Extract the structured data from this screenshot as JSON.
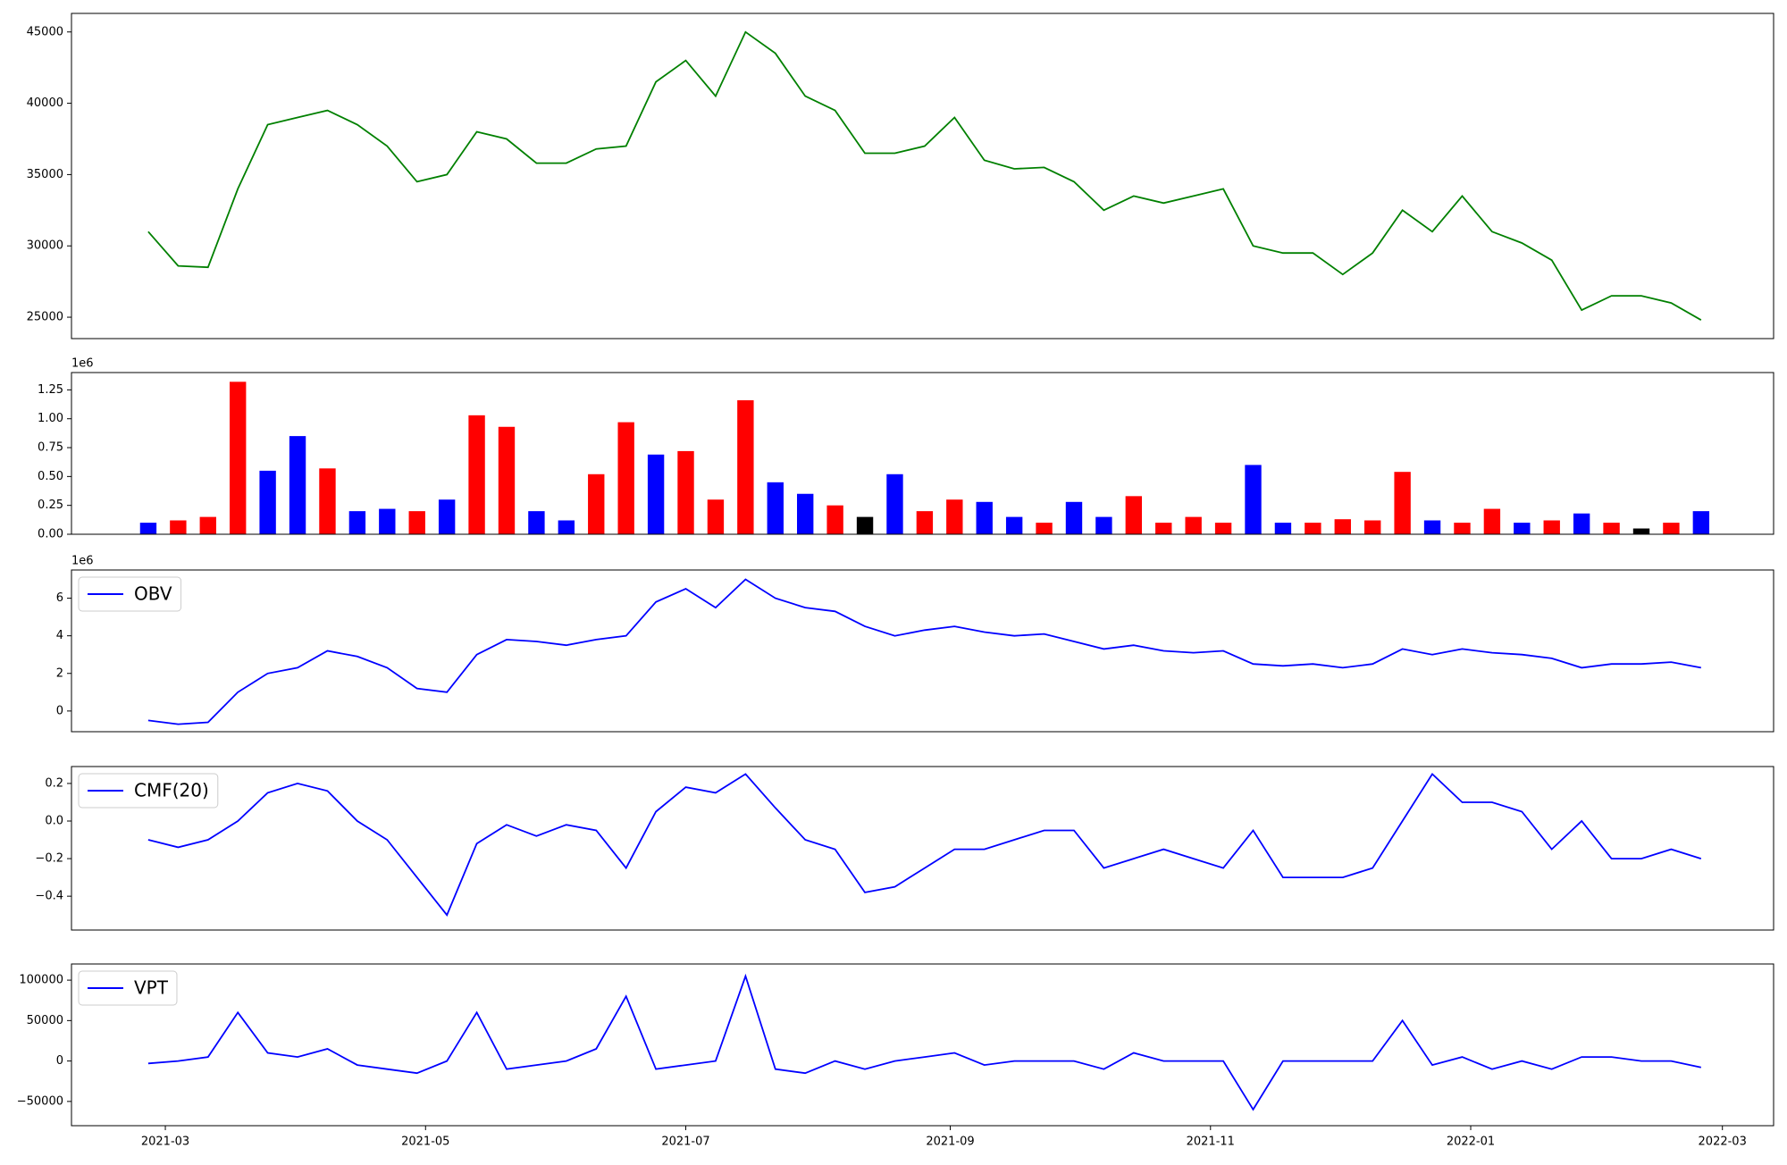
{
  "chart_data": [
    {
      "type": "line",
      "x": [
        "2021-02-25",
        "2021-03-04",
        "2021-03-11",
        "2021-03-18",
        "2021-03-25",
        "2021-04-01",
        "2021-04-08",
        "2021-04-15",
        "2021-04-22",
        "2021-04-29",
        "2021-05-06",
        "2021-05-13",
        "2021-05-20",
        "2021-05-27",
        "2021-06-03",
        "2021-06-10",
        "2021-06-17",
        "2021-06-24",
        "2021-07-01",
        "2021-07-08",
        "2021-07-15",
        "2021-07-22",
        "2021-07-29",
        "2021-08-05",
        "2021-08-12",
        "2021-08-19",
        "2021-08-26",
        "2021-09-02",
        "2021-09-09",
        "2021-09-16",
        "2021-09-23",
        "2021-09-30",
        "2021-10-07",
        "2021-10-14",
        "2021-10-21",
        "2021-10-28",
        "2021-11-04",
        "2021-11-11",
        "2021-11-18",
        "2021-11-25",
        "2021-12-02",
        "2021-12-09",
        "2021-12-16",
        "2021-12-23",
        "2021-12-30",
        "2022-01-06",
        "2022-01-13",
        "2022-01-20",
        "2022-01-27",
        "2022-02-03",
        "2022-02-10",
        "2022-02-17",
        "2022-02-24"
      ],
      "series": [
        {
          "color": "green",
          "values": [
            31000,
            28600,
            28500,
            34000,
            38500,
            39000,
            39500,
            38500,
            37000,
            34500,
            35000,
            38000,
            37500,
            35800,
            35800,
            36800,
            37000,
            41500,
            43000,
            40500,
            45000,
            43500,
            40500,
            39500,
            36500,
            36500,
            37000,
            39000,
            36000,
            35400,
            35500,
            34500,
            32500,
            33500,
            33000,
            33500,
            34000,
            30000,
            29500,
            29500,
            28000,
            29500,
            32500,
            31000,
            33500,
            31000,
            30200,
            29000,
            25500,
            26500,
            26500,
            26000,
            24800
          ]
        }
      ],
      "xlim": [
        "2021-02-07",
        "2022-03-13"
      ],
      "ylim": [
        23500,
        46300
      ],
      "yticks": [
        25000,
        30000,
        35000,
        40000,
        45000
      ]
    },
    {
      "type": "bar",
      "offset_label": "1e6",
      "x": [
        "2021-02-25",
        "2021-03-04",
        "2021-03-11",
        "2021-03-18",
        "2021-03-25",
        "2021-04-01",
        "2021-04-08",
        "2021-04-15",
        "2021-04-22",
        "2021-04-29",
        "2021-05-06",
        "2021-05-13",
        "2021-05-20",
        "2021-05-27",
        "2021-06-03",
        "2021-06-10",
        "2021-06-17",
        "2021-06-24",
        "2021-07-01",
        "2021-07-08",
        "2021-07-15",
        "2021-07-22",
        "2021-07-29",
        "2021-08-05",
        "2021-08-12",
        "2021-08-19",
        "2021-08-26",
        "2021-09-02",
        "2021-09-09",
        "2021-09-16",
        "2021-09-23",
        "2021-09-30",
        "2021-10-07",
        "2021-10-14",
        "2021-10-21",
        "2021-10-28",
        "2021-11-04",
        "2021-11-11",
        "2021-11-18",
        "2021-11-25",
        "2021-12-02",
        "2021-12-09",
        "2021-12-16",
        "2021-12-23",
        "2021-12-30",
        "2022-01-06",
        "2022-01-13",
        "2022-01-20",
        "2022-01-27",
        "2022-02-03",
        "2022-02-10",
        "2022-02-17",
        "2022-02-24"
      ],
      "series": [
        {
          "values": [
            0.1,
            0.12,
            0.15,
            1.32,
            0.55,
            0.85,
            0.57,
            0.2,
            0.22,
            0.2,
            0.3,
            1.03,
            0.93,
            0.2,
            0.12,
            0.52,
            0.97,
            0.69,
            0.72,
            0.3,
            1.16,
            0.45,
            0.35,
            0.25,
            0.15,
            0.52,
            0.2,
            0.3,
            0.28,
            0.15,
            0.1,
            0.28,
            0.15,
            0.33,
            0.1,
            0.15,
            0.1,
            0.6,
            0.1,
            0.1,
            0.13,
            0.12,
            0.54,
            0.12,
            0.1,
            0.22,
            0.1,
            0.12,
            0.18,
            0.1,
            0.05,
            0.1,
            0.2
          ],
          "colors": [
            "blue",
            "red",
            "red",
            "red",
            "blue",
            "blue",
            "red",
            "blue",
            "blue",
            "red",
            "blue",
            "red",
            "red",
            "blue",
            "blue",
            "red",
            "red",
            "blue",
            "red",
            "red",
            "red",
            "blue",
            "blue",
            "red",
            "black",
            "blue",
            "red",
            "red",
            "blue",
            "blue",
            "red",
            "blue",
            "blue",
            "red",
            "red",
            "red",
            "red",
            "blue",
            "blue",
            "red",
            "red",
            "red",
            "red",
            "blue",
            "red",
            "red",
            "blue",
            "red",
            "blue",
            "red",
            "black",
            "red",
            "blue"
          ]
        }
      ],
      "xlim": [
        "2021-02-07",
        "2022-03-13"
      ],
      "ylim": [
        0,
        1.4
      ],
      "yticks": [
        {
          "value": 0,
          "label": "0.00"
        },
        {
          "value": 0.25,
          "label": "0.25"
        },
        {
          "value": 0.5,
          "label": "0.50"
        },
        {
          "value": 0.75,
          "label": "0.75"
        },
        {
          "value": 1,
          "label": "1.00"
        },
        {
          "value": 1.25,
          "label": "1.25"
        }
      ]
    },
    {
      "type": "line",
      "offset_label": "1e6",
      "legend": "upper left",
      "x": [
        "2021-02-25",
        "2021-03-04",
        "2021-03-11",
        "2021-03-18",
        "2021-03-25",
        "2021-04-01",
        "2021-04-08",
        "2021-04-15",
        "2021-04-22",
        "2021-04-29",
        "2021-05-06",
        "2021-05-13",
        "2021-05-20",
        "2021-05-27",
        "2021-06-03",
        "2021-06-10",
        "2021-06-17",
        "2021-06-24",
        "2021-07-01",
        "2021-07-08",
        "2021-07-15",
        "2021-07-22",
        "2021-07-29",
        "2021-08-05",
        "2021-08-12",
        "2021-08-19",
        "2021-08-26",
        "2021-09-02",
        "2021-09-09",
        "2021-09-16",
        "2021-09-23",
        "2021-09-30",
        "2021-10-07",
        "2021-10-14",
        "2021-10-21",
        "2021-10-28",
        "2021-11-04",
        "2021-11-11",
        "2021-11-18",
        "2021-11-25",
        "2021-12-02",
        "2021-12-09",
        "2021-12-16",
        "2021-12-23",
        "2021-12-30",
        "2022-01-06",
        "2022-01-13",
        "2022-01-20",
        "2022-01-27",
        "2022-02-03",
        "2022-02-10",
        "2022-02-17",
        "2022-02-24"
      ],
      "series": [
        {
          "name": "OBV",
          "color": "blue",
          "values": [
            -0.5,
            -0.7,
            -0.6,
            1.0,
            2.0,
            2.3,
            3.2,
            2.9,
            2.3,
            1.2,
            1.0,
            3.0,
            3.8,
            3.7,
            3.5,
            3.8,
            4.0,
            5.8,
            6.5,
            5.5,
            7.0,
            6.0,
            5.5,
            5.3,
            4.5,
            4.0,
            4.3,
            4.5,
            4.2,
            4.0,
            4.1,
            3.7,
            3.3,
            3.5,
            3.2,
            3.1,
            3.2,
            2.5,
            2.4,
            2.5,
            2.3,
            2.5,
            3.3,
            3.0,
            3.3,
            3.1,
            3.0,
            2.8,
            2.3,
            2.5,
            2.5,
            2.6,
            2.3
          ]
        }
      ],
      "xlim": [
        "2021-02-07",
        "2022-03-13"
      ],
      "ylim": [
        -1.1,
        7.5
      ],
      "yticks": [
        0,
        2,
        4,
        6
      ]
    },
    {
      "type": "line",
      "legend": "upper left",
      "x": [
        "2021-02-25",
        "2021-03-04",
        "2021-03-11",
        "2021-03-18",
        "2021-03-25",
        "2021-04-01",
        "2021-04-08",
        "2021-04-15",
        "2021-04-22",
        "2021-04-29",
        "2021-05-06",
        "2021-05-13",
        "2021-05-20",
        "2021-05-27",
        "2021-06-03",
        "2021-06-10",
        "2021-06-17",
        "2021-06-24",
        "2021-07-01",
        "2021-07-08",
        "2021-07-15",
        "2021-07-22",
        "2021-07-29",
        "2021-08-05",
        "2021-08-12",
        "2021-08-19",
        "2021-08-26",
        "2021-09-02",
        "2021-09-09",
        "2021-09-16",
        "2021-09-23",
        "2021-09-30",
        "2021-10-07",
        "2021-10-14",
        "2021-10-21",
        "2021-10-28",
        "2021-11-04",
        "2021-11-11",
        "2021-11-18",
        "2021-11-25",
        "2021-12-02",
        "2021-12-09",
        "2021-12-16",
        "2021-12-23",
        "2021-12-30",
        "2022-01-06",
        "2022-01-13",
        "2022-01-20",
        "2022-01-27",
        "2022-02-03",
        "2022-02-10",
        "2022-02-17",
        "2022-02-24"
      ],
      "series": [
        {
          "name": "CMF(20)",
          "color": "blue",
          "values": [
            -0.1,
            -0.14,
            -0.1,
            0.0,
            0.15,
            0.2,
            0.16,
            0.0,
            -0.1,
            -0.3,
            -0.5,
            -0.12,
            -0.02,
            -0.08,
            -0.02,
            -0.05,
            -0.25,
            0.05,
            0.18,
            0.15,
            0.25,
            0.07,
            -0.1,
            -0.15,
            -0.38,
            -0.35,
            -0.25,
            -0.15,
            -0.15,
            -0.1,
            -0.05,
            -0.05,
            -0.25,
            -0.2,
            -0.15,
            -0.2,
            -0.25,
            -0.05,
            -0.3,
            -0.3,
            -0.3,
            -0.25,
            0.0,
            0.25,
            0.1,
            0.1,
            0.05,
            -0.15,
            0.0,
            -0.2,
            -0.2,
            -0.15,
            -0.2
          ]
        }
      ],
      "xlim": [
        "2021-02-07",
        "2022-03-13"
      ],
      "ylim": [
        -0.58,
        0.29
      ],
      "yticks": [
        {
          "value": -0.4,
          "label": "−0.4"
        },
        {
          "value": -0.2,
          "label": "−0.2"
        },
        {
          "value": 0,
          "label": "0.0"
        },
        {
          "value": 0.2,
          "label": "0.2"
        }
      ]
    },
    {
      "type": "line",
      "legend": "upper left",
      "x": [
        "2021-02-25",
        "2021-03-04",
        "2021-03-11",
        "2021-03-18",
        "2021-03-25",
        "2021-04-01",
        "2021-04-08",
        "2021-04-15",
        "2021-04-22",
        "2021-04-29",
        "2021-05-06",
        "2021-05-13",
        "2021-05-20",
        "2021-05-27",
        "2021-06-03",
        "2021-06-10",
        "2021-06-17",
        "2021-06-24",
        "2021-07-01",
        "2021-07-08",
        "2021-07-15",
        "2021-07-22",
        "2021-07-29",
        "2021-08-05",
        "2021-08-12",
        "2021-08-19",
        "2021-08-26",
        "2021-09-02",
        "2021-09-09",
        "2021-09-16",
        "2021-09-23",
        "2021-09-30",
        "2021-10-07",
        "2021-10-14",
        "2021-10-21",
        "2021-10-28",
        "2021-11-04",
        "2021-11-11",
        "2021-11-18",
        "2021-11-25",
        "2021-12-02",
        "2021-12-09",
        "2021-12-16",
        "2021-12-23",
        "2021-12-30",
        "2022-01-06",
        "2022-01-13",
        "2022-01-20",
        "2022-01-27",
        "2022-02-03",
        "2022-02-10",
        "2022-02-17",
        "2022-02-24"
      ],
      "series": [
        {
          "name": "VPT",
          "color": "blue",
          "values": [
            -3000,
            0,
            5000,
            60000,
            10000,
            5000,
            15000,
            -5000,
            -10000,
            -15000,
            0,
            60000,
            -10000,
            -5000,
            0,
            15000,
            80000,
            -10000,
            -5000,
            0,
            105000,
            -10000,
            -15000,
            0,
            -10000,
            0,
            5000,
            10000,
            -5000,
            0,
            0,
            0,
            -10000,
            10000,
            0,
            0,
            0,
            -60000,
            0,
            0,
            0,
            0,
            50000,
            -5000,
            5000,
            -10000,
            0,
            -10000,
            5000,
            5000,
            0,
            0,
            -8000
          ]
        }
      ],
      "xlim": [
        "2021-02-07",
        "2022-03-13"
      ],
      "ylim": [
        -80000,
        120000
      ],
      "yticks": [
        {
          "value": -50000,
          "label": "−50000"
        },
        0,
        50000,
        100000
      ],
      "xticks": [
        {
          "value": "2021-03-01",
          "label": "2021-03"
        },
        {
          "value": "2021-05-01",
          "label": "2021-05"
        },
        {
          "value": "2021-07-01",
          "label": "2021-07"
        },
        {
          "value": "2021-09-01",
          "label": "2021-09"
        },
        {
          "value": "2021-11-01",
          "label": "2021-11"
        },
        {
          "value": "2022-01-01",
          "label": "2022-01"
        },
        {
          "value": "2022-03-01",
          "label": "2022-03"
        }
      ]
    }
  ]
}
